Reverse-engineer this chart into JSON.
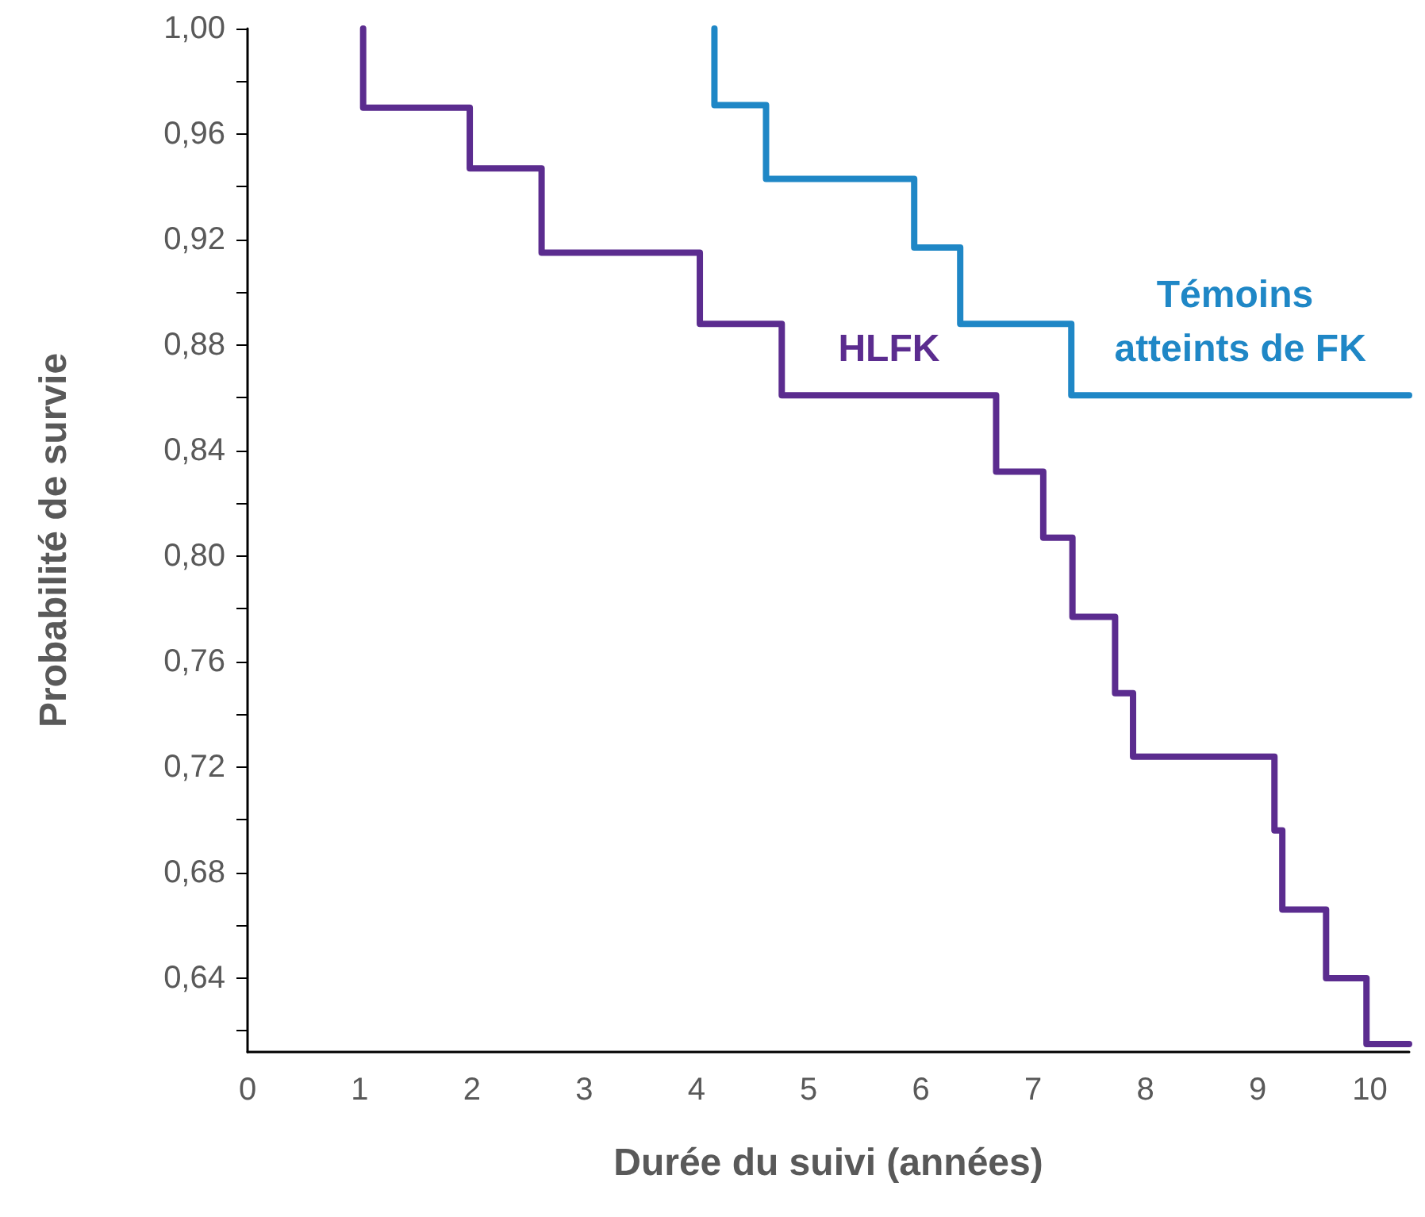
{
  "chart_data": {
    "type": "step",
    "xlabel": "Durée du suivi (années)",
    "ylabel": "Probabilité de survie",
    "xlim": [
      0,
      10.35
    ],
    "ylim": [
      0.612,
      1.0
    ],
    "xticks": [
      0,
      1,
      2,
      3,
      4,
      5,
      6,
      7,
      8,
      9,
      10
    ],
    "yticks": [
      {
        "value": 0.62,
        "label": null
      },
      {
        "value": 0.64,
        "label": "0,64"
      },
      {
        "value": 0.66,
        "label": null
      },
      {
        "value": 0.68,
        "label": "0,68"
      },
      {
        "value": 0.7,
        "label": null
      },
      {
        "value": 0.72,
        "label": "0,72"
      },
      {
        "value": 0.74,
        "label": null
      },
      {
        "value": 0.76,
        "label": "0,76"
      },
      {
        "value": 0.78,
        "label": null
      },
      {
        "value": 0.8,
        "label": "0,80"
      },
      {
        "value": 0.82,
        "label": null
      },
      {
        "value": 0.84,
        "label": "0,84"
      },
      {
        "value": 0.86,
        "label": null
      },
      {
        "value": 0.88,
        "label": "0,88"
      },
      {
        "value": 0.9,
        "label": null
      },
      {
        "value": 0.92,
        "label": "0,92"
      },
      {
        "value": 0.94,
        "label": null
      },
      {
        "value": 0.96,
        "label": "0,96"
      },
      {
        "value": 0.98,
        "label": null
      },
      {
        "value": 1.0,
        "label": "1,00"
      }
    ],
    "marker": "none",
    "line_style": "solid",
    "series": [
      {
        "name": "HLFK",
        "color": "#5b2c8f",
        "x": [
          1.03,
          1.03,
          1.98,
          2.62,
          4.03,
          4.76,
          6.67,
          7.09,
          7.35,
          7.73,
          7.89,
          9.15,
          9.22,
          9.61,
          9.97,
          10.35
        ],
        "values": [
          1.0,
          0.97,
          0.947,
          0.915,
          0.888,
          0.861,
          0.832,
          0.807,
          0.777,
          0.748,
          0.724,
          0.696,
          0.666,
          0.64,
          0.615,
          0.615
        ]
      },
      {
        "name": "Témoins atteints de FK",
        "color": "#1f87c6",
        "x": [
          4.16,
          4.16,
          4.62,
          5.94,
          6.35,
          7.34,
          10.35
        ],
        "values": [
          1.0,
          0.971,
          0.943,
          0.917,
          0.888,
          0.861,
          0.861
        ]
      }
    ]
  }
}
